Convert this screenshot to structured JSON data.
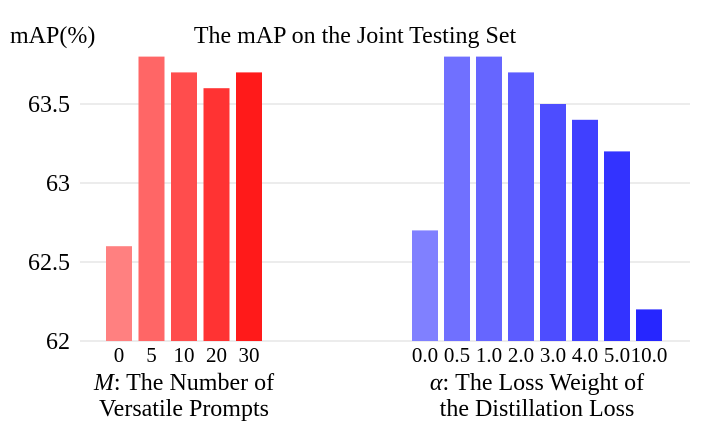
{
  "chart_data": {
    "type": "bar",
    "title": "The mAP on the Joint Testing Set",
    "ylabel": "mAP(%)",
    "ylim": [
      62,
      63.9
    ],
    "yticks": [
      62,
      62.5,
      63,
      63.5
    ],
    "ytick_labels": [
      "62",
      "62.5",
      "63",
      "63.5"
    ],
    "grid": "horizontal",
    "groups": [
      {
        "xlabel_var": "M",
        "xlabel_line1": ": The Number of",
        "xlabel_line2": "Versatile Prompts",
        "categories": [
          "0",
          "5",
          "10",
          "20",
          "30"
        ],
        "values": [
          62.6,
          63.8,
          63.7,
          63.6,
          63.7
        ],
        "colors": [
          "#ff8080",
          "#ff6666",
          "#ff4d4d",
          "#ff3333",
          "#ff1a1a"
        ]
      },
      {
        "xlabel_var": "α",
        "xlabel_line1": ": The Loss Weight of",
        "xlabel_line2": "the Distillation Loss",
        "categories": [
          "0.0",
          "0.5",
          "1.0",
          "2.0",
          "3.0",
          "4.0",
          "5.0",
          "10.0"
        ],
        "values": [
          62.7,
          63.8,
          63.8,
          63.7,
          63.5,
          63.4,
          63.2,
          62.2
        ],
        "colors": [
          "#8080ff",
          "#7070ff",
          "#6666ff",
          "#5c5cff",
          "#4d4dff",
          "#4040ff",
          "#3333ff",
          "#2626ff"
        ]
      }
    ]
  }
}
